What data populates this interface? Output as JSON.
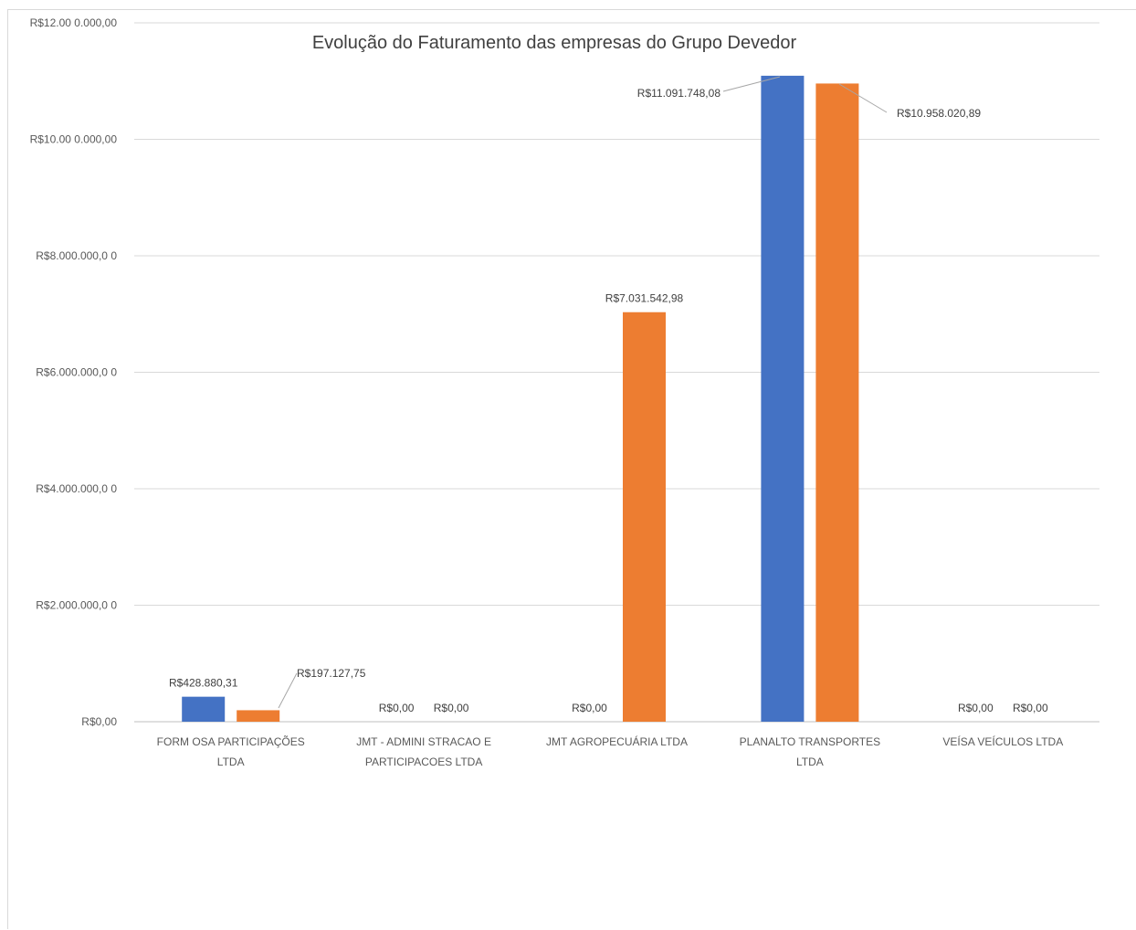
{
  "chart_data": {
    "type": "bar",
    "title": "Evolução do Faturamento das empresas do Grupo Devedor",
    "xlabel": "",
    "ylabel": "",
    "ylim": [
      0,
      12000000
    ],
    "grid": true,
    "legend": "none",
    "yticks": [
      {
        "value": 0,
        "label": "R$0,00"
      },
      {
        "value": 2000000,
        "label": "R$2.000.000,0 0"
      },
      {
        "value": 4000000,
        "label": "R$4.000.000,0 0"
      },
      {
        "value": 6000000,
        "label": "R$6.000.000,0 0"
      },
      {
        "value": 8000000,
        "label": "R$8.000.000,0 0"
      },
      {
        "value": 10000000,
        "label": "R$10.00 0.000,00"
      },
      {
        "value": 12000000,
        "label": "R$12.00 0.000,00"
      }
    ],
    "categories": [
      [
        "FORM OSA PARTICIPAÇÕES",
        "LTDA"
      ],
      [
        "JMT - ADMINI STRACAO E",
        "PARTICIPACOES LTDA"
      ],
      [
        "JMT AGROPECUÁRIA LTDA"
      ],
      [
        "PLANALTO TRANSPORTES",
        "LTDA"
      ],
      [
        "VEÍSA VEÍCULOS LTDA"
      ]
    ],
    "series": [
      {
        "color": "#4472C4",
        "values": [
          428880.31,
          0,
          0,
          11091748.08,
          0
        ],
        "labels": [
          "R$428.880,31",
          "R$0,00",
          "R$0,00",
          "R$11.091.748,08",
          "R$0,00"
        ]
      },
      {
        "color": "#ED7D31",
        "values": [
          197127.75,
          0,
          7031542.98,
          10958020.89,
          0
        ],
        "labels": [
          "R$197.127,75",
          "R$0,00",
          "R$7.031.542,98",
          "R$10.958.020,89",
          "R$0,00"
        ]
      }
    ]
  }
}
